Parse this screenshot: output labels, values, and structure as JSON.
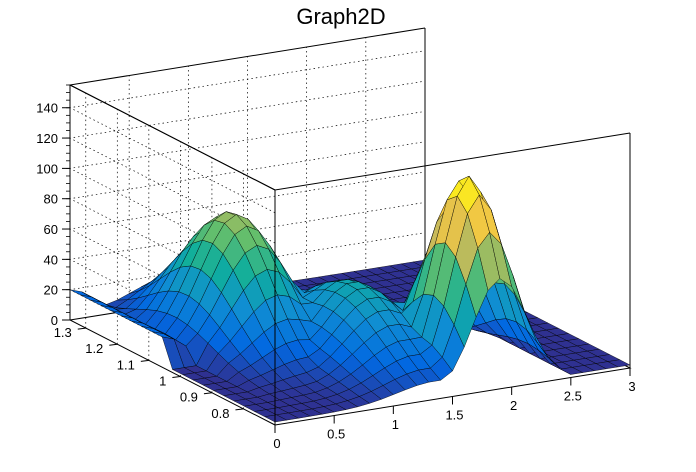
{
  "chart_data": {
    "type": "surface",
    "title": "Graph2D",
    "xlabel": "",
    "ylabel": "",
    "zlabel": "",
    "xlim": [
      0,
      3
    ],
    "ylim": [
      0.7,
      1.35
    ],
    "zlim": [
      0,
      155
    ],
    "grid": true,
    "x_ticks": [
      "0",
      "0.5",
      "1",
      "1.5",
      "2",
      "2.5",
      "3"
    ],
    "y_ticks": [
      "0.8",
      "0.9",
      "1",
      "1.1",
      "1.2",
      "1.3"
    ],
    "z_ticks": [
      "0",
      "20",
      "40",
      "60",
      "80",
      "100",
      "120",
      "140"
    ],
    "colormap": [
      "#352a87",
      "#0268e1",
      "#108ed2",
      "#0fae9c",
      "#65be6c",
      "#d0ba58",
      "#fbcc3c",
      "#f9fb0e"
    ],
    "peaks": [
      {
        "x": 0.0,
        "y": 1.3,
        "z": 18
      },
      {
        "x": 0.3,
        "y": 1.24,
        "z": 45
      },
      {
        "x": 0.8,
        "y": 1.1,
        "z": 92
      },
      {
        "x": 1.9,
        "y": 0.8,
        "z": 128
      }
    ]
  }
}
